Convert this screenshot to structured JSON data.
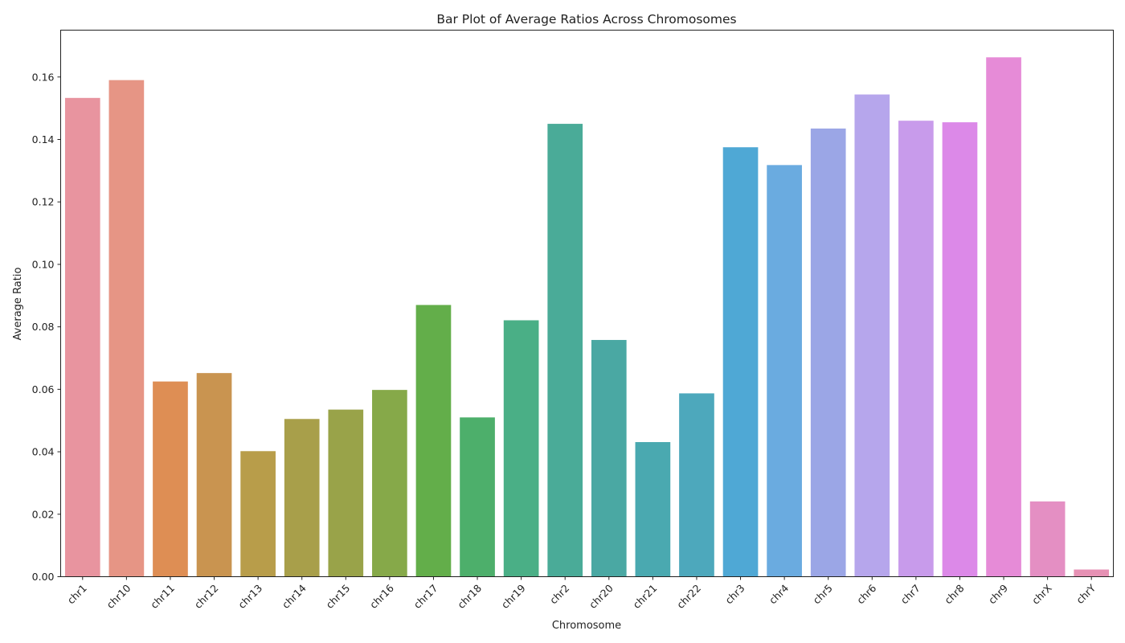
{
  "chart_data": {
    "type": "bar",
    "title": "Bar Plot of Average Ratios Across Chromosomes",
    "xlabel": "Chromosome",
    "ylabel": "Average Ratio",
    "ylim": [
      0,
      0.175
    ],
    "yticks": [
      0.0,
      0.02,
      0.04,
      0.06,
      0.08,
      0.1,
      0.12,
      0.14,
      0.16
    ],
    "ytick_labels": [
      "0.00",
      "0.02",
      "0.04",
      "0.06",
      "0.08",
      "0.10",
      "0.12",
      "0.14",
      "0.16"
    ],
    "grid": false,
    "categories": [
      "chr1",
      "chr10",
      "chr11",
      "chr12",
      "chr13",
      "chr14",
      "chr15",
      "chr16",
      "chr17",
      "chr18",
      "chr19",
      "chr2",
      "chr20",
      "chr21",
      "chr22",
      "chr3",
      "chr4",
      "chr5",
      "chr6",
      "chr7",
      "chr8",
      "chr9",
      "chrX",
      "chrY"
    ],
    "values": [
      0.1533,
      0.159,
      0.0625,
      0.0652,
      0.0402,
      0.0505,
      0.0535,
      0.0598,
      0.087,
      0.051,
      0.0821,
      0.145,
      0.0758,
      0.0431,
      0.0587,
      0.1375,
      0.1318,
      0.1435,
      0.1544,
      0.146,
      0.1455,
      0.1663,
      0.0241,
      0.0023
    ],
    "colors": [
      "#e8949f",
      "#e69585",
      "#de8e54",
      "#c99450",
      "#b89d4a",
      "#a89f4a",
      "#99a349",
      "#86a949",
      "#63ae4a",
      "#4daf6b",
      "#4aaf86",
      "#4aab98",
      "#4aa8a3",
      "#4aa9b0",
      "#4da8bc",
      "#4fa8d5",
      "#6aabe0",
      "#9ba6e6",
      "#b6a6ec",
      "#c89beb",
      "#dc89e8",
      "#e68bd7",
      "#e48fc3",
      "#e691b4"
    ]
  }
}
